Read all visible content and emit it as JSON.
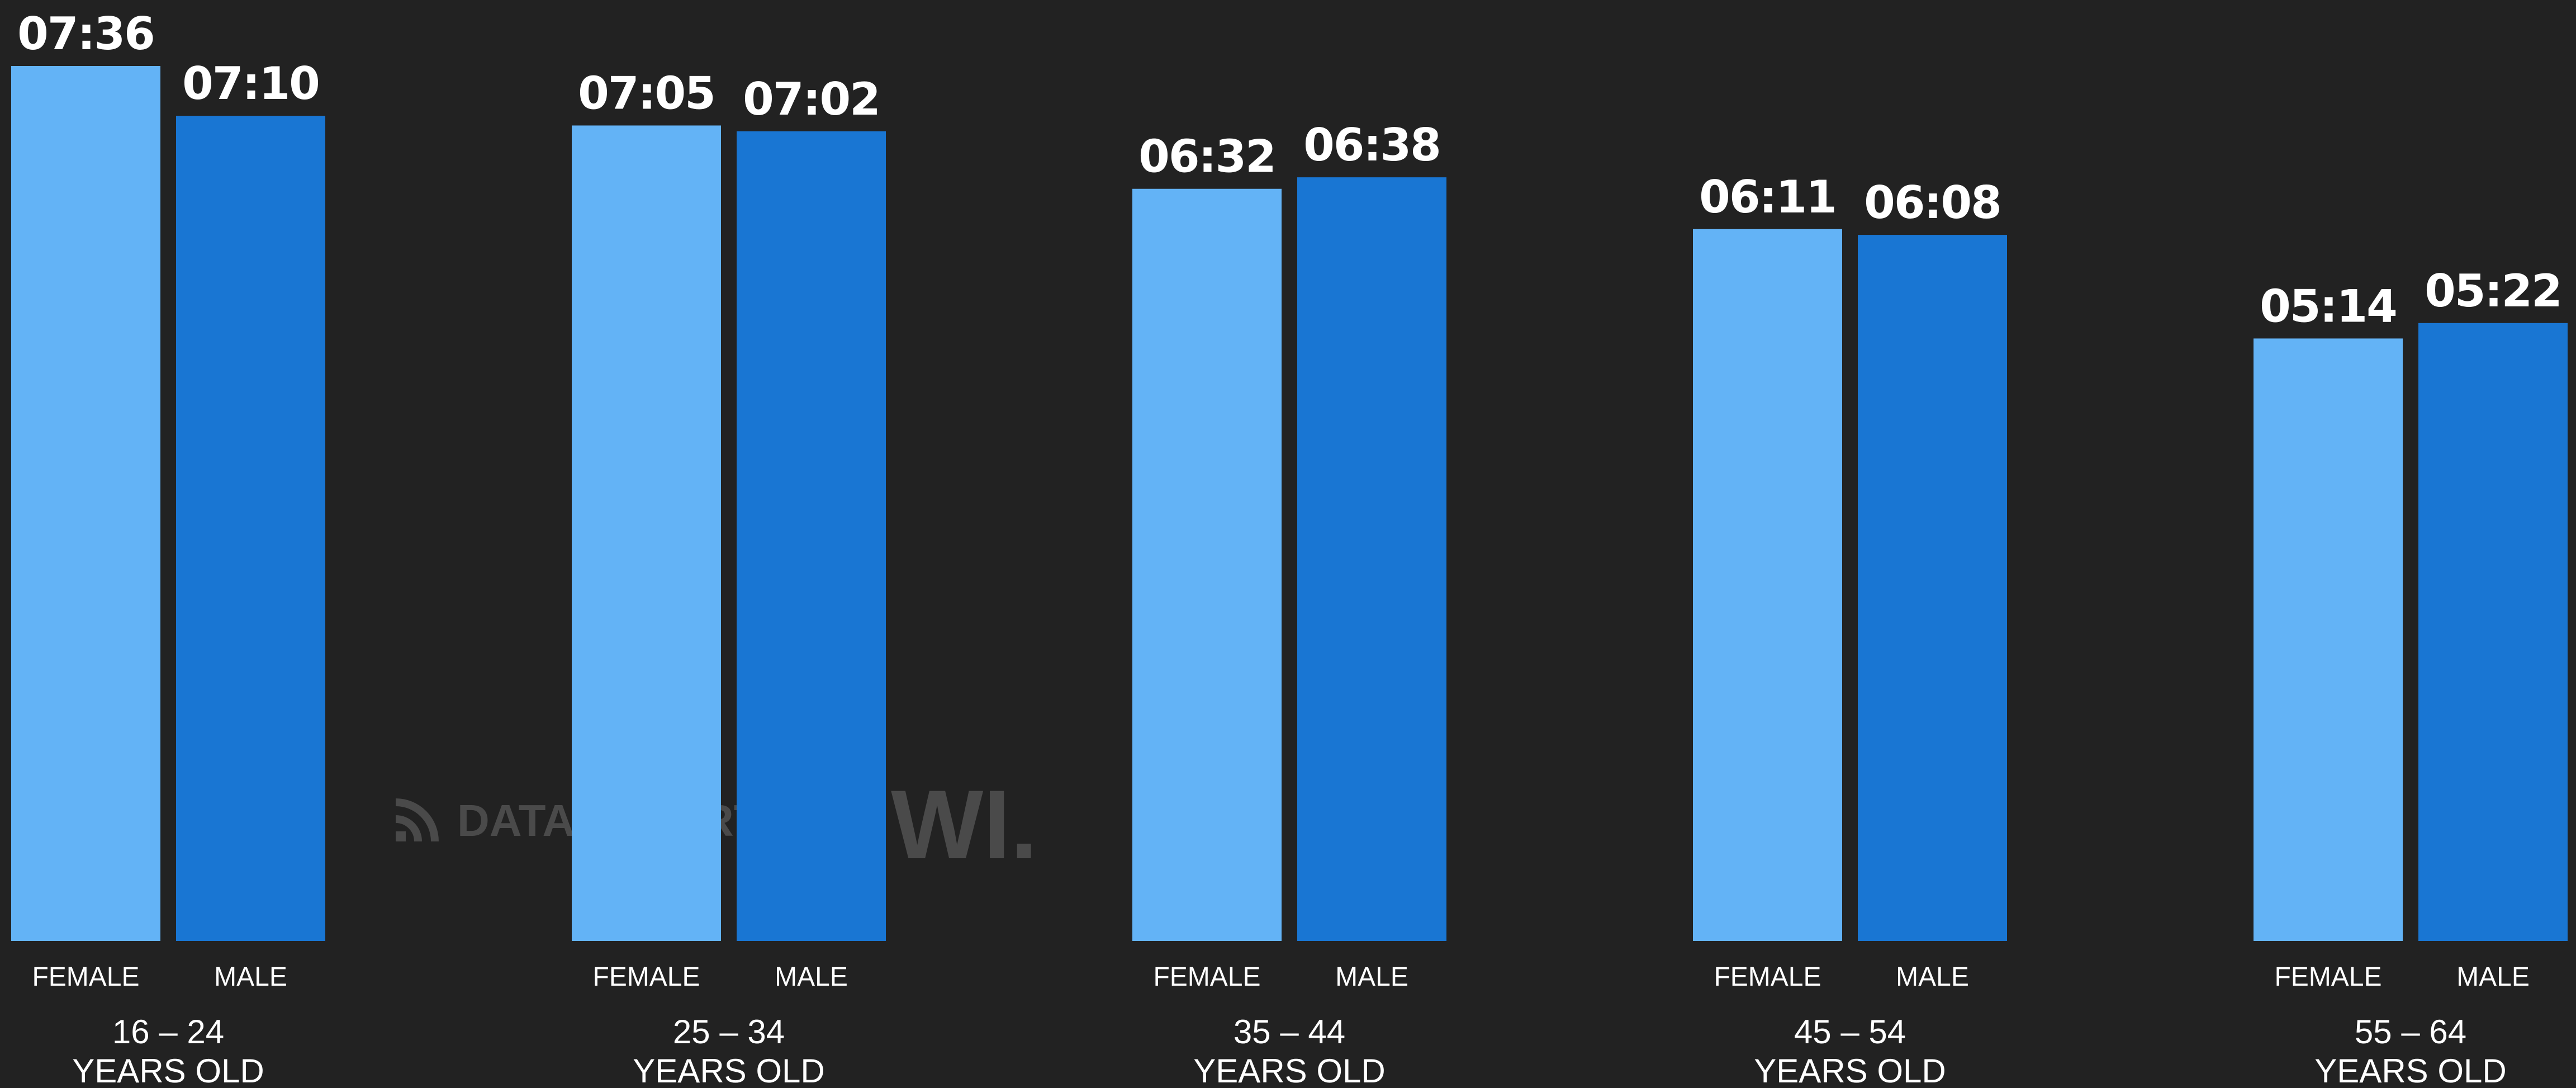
{
  "chart_data": {
    "type": "bar",
    "categories": [
      "16 – 24",
      "25 – 34",
      "35 – 44",
      "45 – 54",
      "55 – 64"
    ],
    "category_suffix": "YEARS OLD",
    "series": [
      {
        "name": "FEMALE",
        "values": [
          7.6,
          7.083,
          6.533,
          6.183,
          5.233
        ],
        "labels": [
          "07:36",
          "07:05",
          "06:32",
          "06:11",
          "05:14"
        ],
        "color": "#63B3F6"
      },
      {
        "name": "MALE",
        "values": [
          7.167,
          7.033,
          6.633,
          6.133,
          5.367
        ],
        "labels": [
          "07:10",
          "07:02",
          "06:38",
          "06:08",
          "05:22"
        ],
        "color": "#1976D3"
      }
    ],
    "ylim": [
      0,
      7.6
    ],
    "grid": false,
    "legend": "none"
  },
  "watermark": {
    "brand_1": "DATAREPORTAL",
    "brand_2": "GWI."
  },
  "colors": {
    "background": "#222222",
    "text": "#ffffff",
    "watermark": "#4a4a4a"
  }
}
